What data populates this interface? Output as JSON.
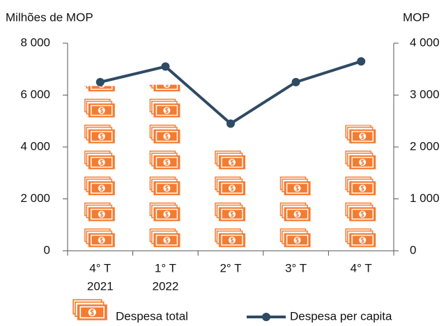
{
  "chart_data": {
    "type": "bar",
    "y_label": "Milhões de MOP",
    "y2_label": "MOP",
    "categories": [
      [
        "4° T",
        "2021"
      ],
      [
        "1° T",
        "2022"
      ],
      [
        "2° T"
      ],
      [
        "3° T"
      ],
      [
        "4° T"
      ]
    ],
    "series": [
      {
        "name": "Despesa total",
        "type": "bar",
        "color": "#f47b30",
        "values": [
          6350,
          6400,
          3900,
          2950,
          4850
        ]
      },
      {
        "name": "Despesa per capita",
        "type": "line",
        "axis": "y2",
        "color": "#2f4a63",
        "values": [
          3250,
          3550,
          2450,
          3250,
          3650
        ]
      }
    ],
    "ylim": [
      0,
      8000
    ],
    "yticks": [
      0,
      {
        "value": 2000,
        "label": "2 000"
      },
      {
        "value": 4000,
        "label": "4 000"
      },
      {
        "value": 6000,
        "label": "6 000"
      },
      {
        "value": 8000,
        "label": "8 000"
      }
    ],
    "y2lim": [
      0,
      4000
    ],
    "y2ticks": [
      0,
      {
        "value": 1000,
        "label": "1 000"
      },
      {
        "value": 2000,
        "label": "2 000"
      },
      {
        "value": 3000,
        "label": "3 000"
      },
      {
        "value": 4000,
        "label": "4 000"
      }
    ],
    "grid": false
  }
}
